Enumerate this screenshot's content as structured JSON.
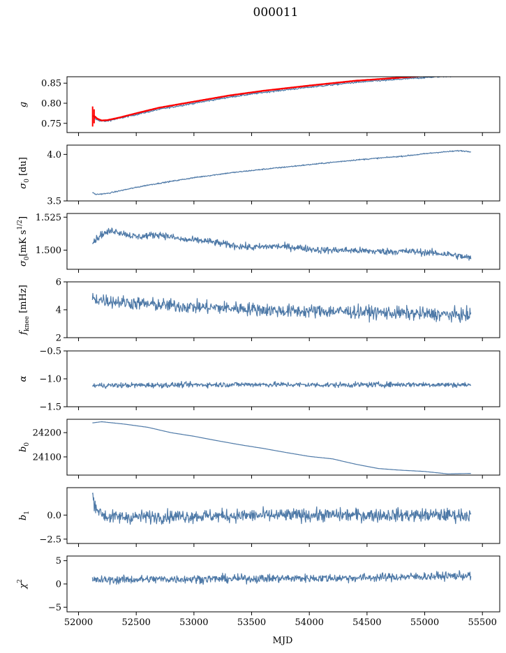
{
  "figure": {
    "title": "000011",
    "xlabel": "MJD"
  },
  "colors": {
    "series": "#4e79a7",
    "overlay": "#ff0000",
    "axes": "#000000"
  },
  "chart_data": [
    {
      "type": "line",
      "ylabel": "g",
      "ylabel_sub": "",
      "xlim": [
        51900,
        55650
      ],
      "ylim": [
        0.727,
        0.866
      ],
      "yticks": [
        0.75,
        0.8,
        0.85
      ],
      "ytick_labels": [
        "0.75",
        "0.80",
        "0.85"
      ],
      "series": [
        {
          "x": [
            52120,
            52150,
            52200,
            52250,
            52350,
            52500,
            52700,
            53000,
            53300,
            53600,
            54000,
            54400,
            54800,
            55100,
            55400
          ],
          "y": [
            0.77,
            0.76,
            0.755,
            0.756,
            0.762,
            0.772,
            0.785,
            0.8,
            0.815,
            0.827,
            0.84,
            0.852,
            0.86,
            0.866,
            0.87
          ],
          "noise": 0.002
        },
        {
          "role": "overlay",
          "x": [
            52130,
            52160,
            52200,
            52250,
            52350,
            52500,
            52700,
            53000,
            53300,
            53600,
            54000,
            54400,
            54800,
            55100
          ],
          "y": [
            0.77,
            0.762,
            0.757,
            0.758,
            0.764,
            0.775,
            0.789,
            0.804,
            0.819,
            0.831,
            0.844,
            0.856,
            0.864,
            0.87
          ],
          "errorbars": [
            {
              "x": 52122,
              "ylo": 0.742,
              "yhi": 0.792
            },
            {
              "x": 52135,
              "ylo": 0.75,
              "yhi": 0.785
            }
          ]
        }
      ]
    },
    {
      "type": "line",
      "ylabel": "σ",
      "ylabel_sub": "0",
      "ylabel_suffix": " [du]",
      "xlim": [
        51900,
        55650
      ],
      "ylim": [
        3.5,
        4.1
      ],
      "yticks": [
        3.5,
        4.0
      ],
      "ytick_labels": [
        "3.5",
        "4.0"
      ],
      "series": [
        {
          "x": [
            52120,
            52150,
            52250,
            52400,
            52600,
            52800,
            53000,
            53300,
            53600,
            54000,
            54400,
            54800,
            55100,
            55300,
            55400
          ],
          "y": [
            3.59,
            3.57,
            3.58,
            3.62,
            3.67,
            3.71,
            3.75,
            3.8,
            3.84,
            3.89,
            3.94,
            3.98,
            4.02,
            4.04,
            4.03
          ],
          "noise": 0.006
        }
      ]
    },
    {
      "type": "line",
      "ylabel": "σ",
      "ylabel_sub": "0",
      "ylabel_suffix": "[mK s^1/2]",
      "xlim": [
        51900,
        55650
      ],
      "ylim": [
        1.4855,
        1.5278
      ],
      "yticks": [
        1.5,
        1.525
      ],
      "ytick_labels": [
        "1.500",
        "1.525"
      ],
      "series": [
        {
          "x": [
            52120,
            52200,
            52300,
            52500,
            52700,
            52900,
            53100,
            53300,
            53500,
            53700,
            53900,
            54100,
            54300,
            54600,
            54900,
            55200,
            55400
          ],
          "y": [
            1.506,
            1.512,
            1.515,
            1.51,
            1.512,
            1.508,
            1.507,
            1.504,
            1.502,
            1.503,
            1.502,
            1.5,
            1.5,
            1.499,
            1.499,
            1.497,
            1.494
          ],
          "noise": 0.0025
        }
      ]
    },
    {
      "type": "line",
      "ylabel": "f",
      "ylabel_sub": "knee",
      "ylabel_suffix": " [mHz]",
      "xlim": [
        51900,
        55650
      ],
      "ylim": [
        2,
        6
      ],
      "yticks": [
        2,
        4,
        6
      ],
      "ytick_labels": [
        "2",
        "4",
        "6"
      ],
      "series": [
        {
          "x": [
            52120,
            52300,
            52600,
            53000,
            53400,
            53800,
            54200,
            54600,
            55000,
            55400
          ],
          "y": [
            4.8,
            4.6,
            4.4,
            4.2,
            4.1,
            3.9,
            3.9,
            3.8,
            3.7,
            3.6
          ],
          "noise": 0.45
        }
      ]
    },
    {
      "type": "line",
      "ylabel": "α",
      "ylabel_sub": "",
      "xlim": [
        51900,
        55650
      ],
      "ylim": [
        -1.5,
        -0.5
      ],
      "yticks": [
        -1.5,
        -1.0,
        -0.5
      ],
      "ytick_labels": [
        "−1.5",
        "−1.0",
        "−0.5"
      ],
      "series": [
        {
          "x": [
            52120,
            52800,
            53500,
            54200,
            54900,
            55400
          ],
          "y": [
            -1.12,
            -1.11,
            -1.1,
            -1.11,
            -1.1,
            -1.11
          ],
          "noise": 0.045
        }
      ]
    },
    {
      "type": "line",
      "ylabel": "b",
      "ylabel_sub": "0",
      "xlim": [
        51900,
        55650
      ],
      "ylim": [
        24025,
        24255
      ],
      "yticks": [
        24100,
        24200
      ],
      "ytick_labels": [
        "24100",
        "24200"
      ],
      "series": [
        {
          "x": [
            52120,
            52200,
            52400,
            52600,
            52800,
            53000,
            53200,
            53400,
            53600,
            53800,
            54000,
            54200,
            54400,
            54600,
            54800,
            55000,
            55200,
            55400
          ],
          "y": [
            24240,
            24245,
            24235,
            24222,
            24200,
            24185,
            24167,
            24150,
            24135,
            24118,
            24102,
            24092,
            24070,
            24052,
            24045,
            24040,
            24030,
            24032
          ],
          "noise": 0
        }
      ]
    },
    {
      "type": "line",
      "ylabel": "b",
      "ylabel_sub": "1",
      "xlim": [
        51900,
        55650
      ],
      "ylim": [
        -2.95,
        2.85
      ],
      "yticks": [
        -2.5,
        0.0
      ],
      "ytick_labels": [
        "−2.5",
        "0.0"
      ],
      "series": [
        {
          "x": [
            52120,
            52140,
            52180,
            52250,
            52400,
            53000,
            54000,
            55000,
            55400
          ],
          "y": [
            2.0,
            1.2,
            0.3,
            -0.2,
            -0.2,
            -0.1,
            0.0,
            0.0,
            0.0
          ],
          "noise": 0.65
        }
      ]
    },
    {
      "type": "line",
      "ylabel": "χ",
      "ylabel_sup": "2",
      "xlim": [
        51900,
        55650
      ],
      "ylim": [
        -6,
        6
      ],
      "yticks": [
        -5,
        0,
        5
      ],
      "ytick_labels": [
        "−5",
        "0",
        "5"
      ],
      "xticks": [
        52000,
        52500,
        53000,
        53500,
        54000,
        54500,
        55000,
        55500
      ],
      "xtick_labels": [
        "52000",
        "52500",
        "53000",
        "53500",
        "54000",
        "54500",
        "55000",
        "55500"
      ],
      "series": [
        {
          "x": [
            52120,
            52600,
            53200,
            53800,
            54400,
            55000,
            55400
          ],
          "y": [
            0.8,
            1.0,
            1.1,
            1.2,
            1.3,
            1.6,
            1.8
          ],
          "noise": 0.85
        }
      ]
    }
  ]
}
